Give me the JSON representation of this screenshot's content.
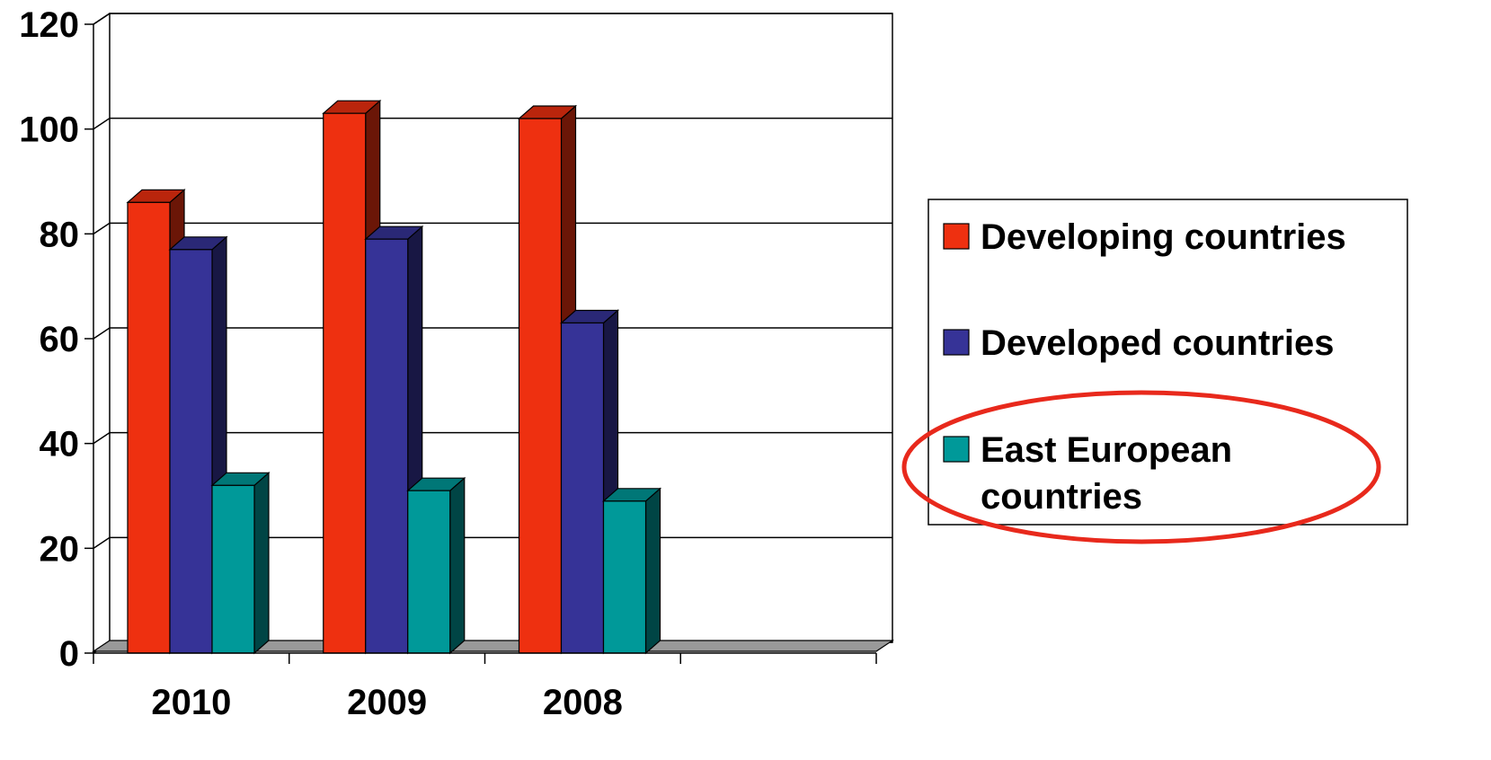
{
  "chart_data": {
    "type": "bar",
    "style": "3d-clustered-column",
    "title": "",
    "xlabel": "",
    "ylabel": "",
    "categories": [
      "2010",
      "2009",
      "2008"
    ],
    "series": [
      {
        "name": "Developing countries",
        "color": "#ee3010",
        "values": [
          86,
          103,
          102
        ]
      },
      {
        "name": "Developed countries",
        "color": "#363397",
        "values": [
          77,
          79,
          63
        ]
      },
      {
        "name": "East European countries",
        "legend_lines": [
          "East European",
          "countries"
        ],
        "color": "#009999",
        "values": [
          32,
          31,
          29
        ]
      }
    ],
    "ylim": [
      0,
      120
    ],
    "yticks": [
      0,
      20,
      40,
      60,
      80,
      100,
      120
    ],
    "grid": true,
    "legend_position": "right",
    "highlight": {
      "target": "East European countries",
      "shape": "ellipse",
      "color": "#e8291c"
    }
  }
}
